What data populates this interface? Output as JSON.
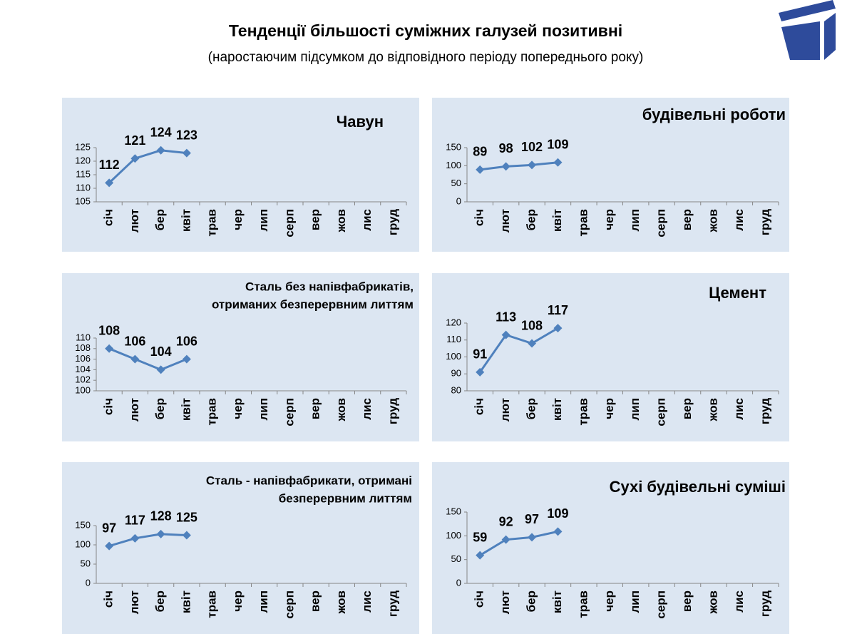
{
  "header": {
    "title": "Тенденції більшості суміжних галузей позитивні",
    "subtitle": "(наростаючим підсумком до відповідного періоду попереднього року)"
  },
  "chart_data": [
    {
      "type": "line",
      "title": [
        "Чавун"
      ],
      "categories": [
        "січ",
        "лют",
        "бер",
        "квіт",
        "трав",
        "чер",
        "лип",
        "серп",
        "вер",
        "жов",
        "лис",
        "груд"
      ],
      "values": [
        112,
        121,
        124,
        123,
        null,
        null,
        null,
        null,
        null,
        null,
        null,
        null
      ],
      "color": "#4f81bd",
      "ylim": [
        105,
        125
      ],
      "yticks": [
        105,
        110,
        115,
        120,
        125
      ]
    },
    {
      "type": "line",
      "title": [
        "будівельні роботи"
      ],
      "categories": [
        "січ",
        "лют",
        "бер",
        "квіт",
        "трав",
        "чер",
        "лип",
        "серп",
        "вер",
        "жов",
        "лис",
        "груд"
      ],
      "values": [
        89,
        98,
        102,
        109,
        null,
        null,
        null,
        null,
        null,
        null,
        null,
        null
      ],
      "color": "#4f81bd",
      "ylim": [
        0,
        150
      ],
      "yticks": [
        0,
        50,
        100,
        150
      ]
    },
    {
      "type": "line",
      "title": [
        "Сталь без напівфабрикатів,",
        "отриманих безперервним литтям"
      ],
      "categories": [
        "січ",
        "лют",
        "бер",
        "квіт",
        "трав",
        "чер",
        "лип",
        "серп",
        "вер",
        "жов",
        "лис",
        "груд"
      ],
      "values": [
        108,
        106,
        104,
        106,
        null,
        null,
        null,
        null,
        null,
        null,
        null,
        null
      ],
      "color": "#4f81bd",
      "ylim": [
        100,
        110
      ],
      "yticks": [
        100,
        102,
        104,
        106,
        108,
        110
      ]
    },
    {
      "type": "line",
      "title": [
        "Цемент"
      ],
      "categories": [
        "січ",
        "лют",
        "бер",
        "квіт",
        "трав",
        "чер",
        "лип",
        "серп",
        "вер",
        "жов",
        "лис",
        "груд"
      ],
      "values": [
        91,
        113,
        108,
        117,
        null,
        null,
        null,
        null,
        null,
        null,
        null,
        null
      ],
      "color": "#4f81bd",
      "ylim": [
        80,
        120
      ],
      "yticks": [
        80,
        90,
        100,
        110,
        120
      ]
    },
    {
      "type": "line",
      "title": [
        "Сталь - напівфабрикати, отримані",
        "безперервним литтям"
      ],
      "categories": [
        "січ",
        "лют",
        "бер",
        "квіт",
        "трав",
        "чер",
        "лип",
        "серп",
        "вер",
        "жов",
        "лис",
        "груд"
      ],
      "values": [
        97,
        117,
        128,
        125,
        null,
        null,
        null,
        null,
        null,
        null,
        null,
        null
      ],
      "color": "#4f81bd",
      "ylim": [
        0,
        150
      ],
      "yticks": [
        0,
        50,
        100,
        150
      ]
    },
    {
      "type": "line",
      "title": [
        "Сухі будівельні суміші"
      ],
      "categories": [
        "січ",
        "лют",
        "бер",
        "квіт",
        "трав",
        "чер",
        "лип",
        "серп",
        "вер",
        "жов",
        "лис",
        "груд"
      ],
      "values": [
        59,
        92,
        97,
        109,
        null,
        null,
        null,
        null,
        null,
        null,
        null,
        null
      ],
      "color": "#4f81bd",
      "ylim": [
        0,
        150
      ],
      "yticks": [
        0,
        50,
        100,
        150
      ]
    }
  ]
}
